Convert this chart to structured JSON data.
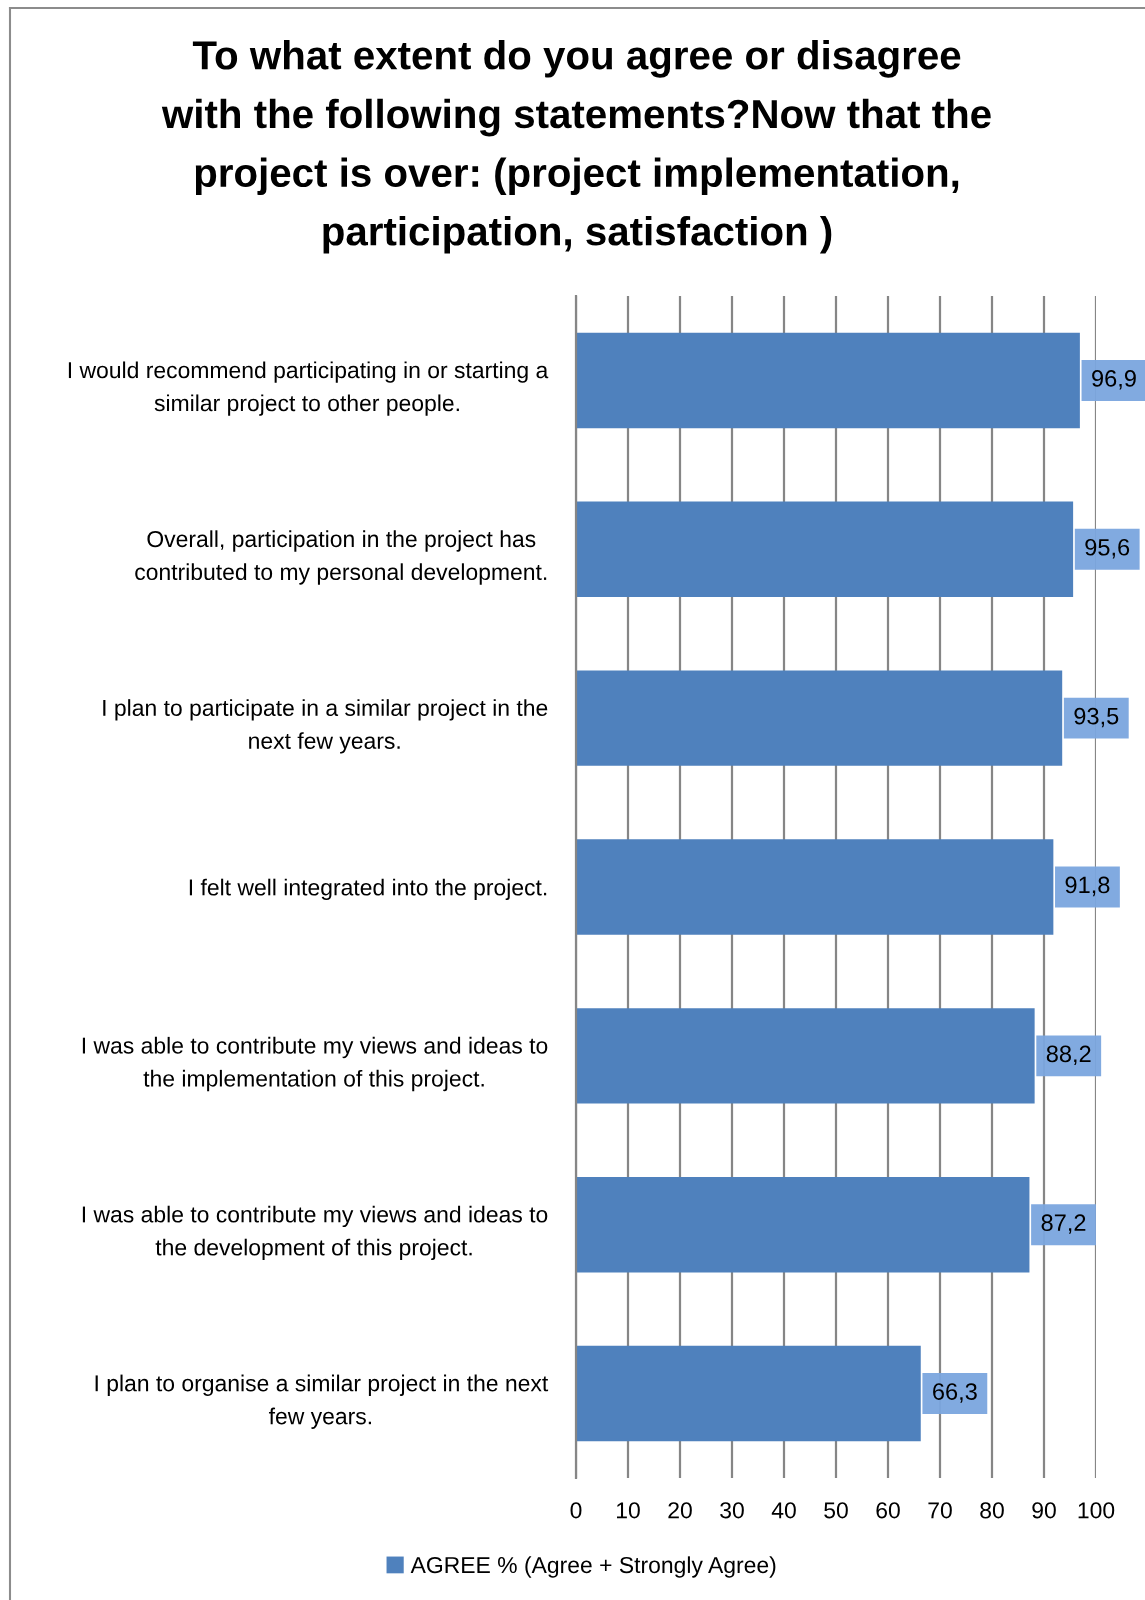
{
  "chart_data": {
    "type": "bar",
    "orientation": "horizontal",
    "title": "To what extent do you agree or disagree\nwith the following statements?Now that the\nproject is over: (project implementation,\nparticipation, satisfaction )",
    "categories": [
      "I would recommend participating in or starting a\nsimilar project to other people.",
      "Overall, participation in the project has\ncontributed to my personal development.",
      "I plan to participate in a similar project in the\nnext few years.",
      "I felt well integrated into the project.",
      "I was able to contribute my views and ideas to\nthe implementation of this project.",
      "I was able to contribute my views and ideas to\nthe development of this project.",
      "I plan to organise a similar project in the next\nfew years."
    ],
    "series": [
      {
        "name": "AGREE % (Agree + Strongly Agree)",
        "color": "#4f81bd",
        "values": [
          96.9,
          95.6,
          93.5,
          91.8,
          88.2,
          87.2,
          66.3
        ],
        "value_labels": [
          "96,9",
          "95,6",
          "93,5",
          "91,8",
          "88,2",
          "87,2",
          "66,3"
        ]
      }
    ],
    "xlim": [
      0,
      100
    ],
    "xticks": [
      0,
      10,
      20,
      30,
      40,
      50,
      60,
      70,
      80,
      90,
      100
    ],
    "grid": "x",
    "legend": "bottom"
  }
}
